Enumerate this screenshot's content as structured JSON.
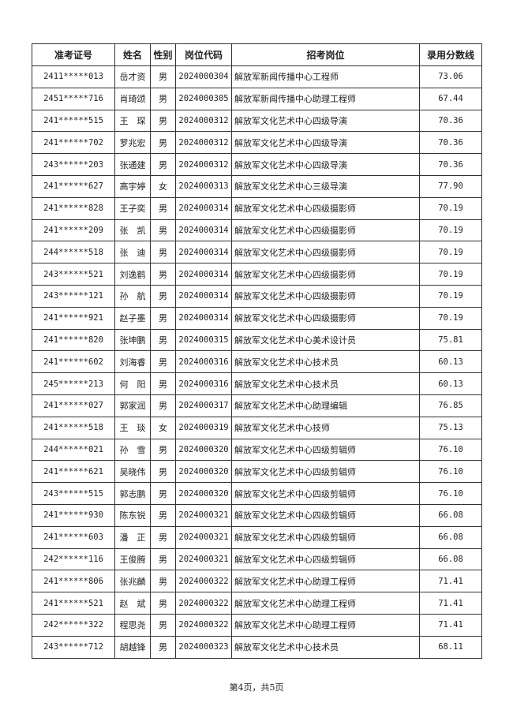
{
  "table": {
    "headers": [
      "准考证号",
      "姓名",
      "性别",
      "岗位代码",
      "招考岗位",
      "录用分数线"
    ],
    "rows": [
      [
        "2411*****013",
        "岳才资",
        "男",
        "2024000304",
        "解放军新闻传播中心工程师",
        "73.06"
      ],
      [
        "2451*****716",
        "肖琦颂",
        "男",
        "2024000305",
        "解放军新闻传播中心助理工程师",
        "67.44"
      ],
      [
        "241******515",
        "王　琛",
        "男",
        "2024000312",
        "解放军文化艺术中心四级导演",
        "70.36"
      ],
      [
        "241******702",
        "罗兆宏",
        "男",
        "2024000312",
        "解放军文化艺术中心四级导演",
        "70.36"
      ],
      [
        "243******203",
        "张通建",
        "男",
        "2024000312",
        "解放军文化艺术中心四级导演",
        "70.36"
      ],
      [
        "241******627",
        "高宇婷",
        "女",
        "2024000313",
        "解放军文化艺术中心三级导演",
        "77.90"
      ],
      [
        "241******828",
        "王子奕",
        "男",
        "2024000314",
        "解放军文化艺术中心四级摄影师",
        "70.19"
      ],
      [
        "241******209",
        "张　凯",
        "男",
        "2024000314",
        "解放军文化艺术中心四级摄影师",
        "70.19"
      ],
      [
        "244******518",
        "张　迪",
        "男",
        "2024000314",
        "解放军文化艺术中心四级摄影师",
        "70.19"
      ],
      [
        "243******521",
        "刘逸鹤",
        "男",
        "2024000314",
        "解放军文化艺术中心四级摄影师",
        "70.19"
      ],
      [
        "243******121",
        "孙　航",
        "男",
        "2024000314",
        "解放军文化艺术中心四级摄影师",
        "70.19"
      ],
      [
        "241******921",
        "赵子墨",
        "男",
        "2024000314",
        "解放军文化艺术中心四级摄影师",
        "70.19"
      ],
      [
        "241******820",
        "张坤鹏",
        "男",
        "2024000315",
        "解放军文化艺术中心美术设计员",
        "75.81"
      ],
      [
        "241******602",
        "刘海睿",
        "男",
        "2024000316",
        "解放军文化艺术中心技术员",
        "60.13"
      ],
      [
        "245******213",
        "何　阳",
        "男",
        "2024000316",
        "解放军文化艺术中心技术员",
        "60.13"
      ],
      [
        "241******027",
        "郭家润",
        "男",
        "2024000317",
        "解放军文化艺术中心助理编辑",
        "76.85"
      ],
      [
        "241******518",
        "王　琰",
        "女",
        "2024000319",
        "解放军文化艺术中心技师",
        "75.13"
      ],
      [
        "244******021",
        "孙　雪",
        "男",
        "2024000320",
        "解放军文化艺术中心四级剪辑师",
        "76.10"
      ],
      [
        "241******621",
        "吴晓伟",
        "男",
        "2024000320",
        "解放军文化艺术中心四级剪辑师",
        "76.10"
      ],
      [
        "243******515",
        "郭志鹏",
        "男",
        "2024000320",
        "解放军文化艺术中心四级剪辑师",
        "76.10"
      ],
      [
        "241******930",
        "陈东锐",
        "男",
        "2024000321",
        "解放军文化艺术中心四级剪辑师",
        "66.08"
      ],
      [
        "241******603",
        "潘　正",
        "男",
        "2024000321",
        "解放军文化艺术中心四级剪辑师",
        "66.08"
      ],
      [
        "242******116",
        "王俊腾",
        "男",
        "2024000321",
        "解放军文化艺术中心四级剪辑师",
        "66.08"
      ],
      [
        "241******806",
        "张兆麟",
        "男",
        "2024000322",
        "解放军文化艺术中心助理工程师",
        "71.41"
      ],
      [
        "241******521",
        "赵　斌",
        "男",
        "2024000322",
        "解放军文化艺术中心助理工程师",
        "71.41"
      ],
      [
        "242******322",
        "程思尧",
        "男",
        "2024000322",
        "解放军文化艺术中心助理工程师",
        "71.41"
      ],
      [
        "243******712",
        "胡越锋",
        "男",
        "2024000323",
        "解放军文化艺术中心技术员",
        "68.11"
      ]
    ]
  },
  "footer": {
    "page_label": "第4页，共5页"
  }
}
